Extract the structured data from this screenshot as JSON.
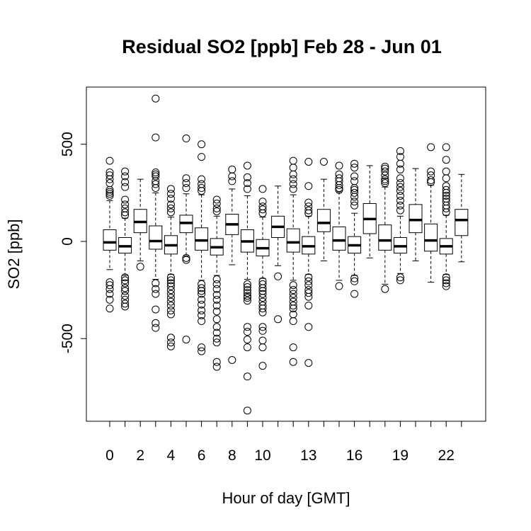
{
  "chart_data": {
    "type": "box",
    "title": "Residual SO2 [ppb] Feb 28 - Jun 01",
    "xlabel": "Hour of day [GMT]",
    "ylabel": "SO2 [ppb]",
    "ylim": [
      -900,
      800
    ],
    "y_ticks": [
      -500,
      0,
      500
    ],
    "y_tick_labels": [
      "-500",
      "0",
      "500"
    ],
    "x_tick_labels": [
      "0",
      "2",
      "4",
      "6",
      "8",
      "10",
      "13",
      "16",
      "19",
      "22"
    ],
    "x_tick_label_hours": [
      0,
      2,
      4,
      6,
      8,
      10,
      13,
      16,
      19,
      22
    ],
    "boxes": [
      {
        "hour": 0,
        "whisker_low": -145,
        "q1": -45,
        "median": -5,
        "q3": 60,
        "whisker_high": 210,
        "outliers": [
          415,
          355,
          340,
          320,
          300,
          265,
          255,
          245,
          235,
          -210,
          -225,
          -245,
          -270,
          -300,
          -345
        ]
      },
      {
        "hour": 1,
        "whisker_low": -175,
        "q1": -60,
        "median": -25,
        "q3": 20,
        "whisker_high": 120,
        "outliers": [
          360,
          335,
          305,
          280,
          215,
          190,
          170,
          150,
          135,
          -185,
          -200,
          -215,
          -240,
          -255,
          -280,
          -300,
          -320,
          -335
        ]
      },
      {
        "hour": 2,
        "whisker_low": -100,
        "q1": 45,
        "median": 100,
        "q3": 165,
        "whisker_high": 320,
        "outliers": [
          -130
        ]
      },
      {
        "hour": 3,
        "whisker_low": -195,
        "q1": -40,
        "median": 2,
        "q3": 80,
        "whisker_high": 250,
        "outliers": [
          735,
          535,
          355,
          345,
          335,
          310,
          295,
          275,
          -215,
          -245,
          -270,
          -350,
          -420,
          -445
        ]
      },
      {
        "hour": 4,
        "whisker_low": -170,
        "q1": -65,
        "median": -20,
        "q3": 30,
        "whisker_high": 125,
        "outliers": [
          270,
          245,
          220,
          190,
          170,
          150,
          -185,
          -200,
          -215,
          -230,
          -250,
          -270,
          -290,
          -310,
          -330,
          -355,
          -375,
          -495,
          -520,
          -540
        ]
      },
      {
        "hour": 5,
        "whisker_low": -75,
        "q1": 45,
        "median": 95,
        "q3": 135,
        "whisker_high": 245,
        "outliers": [
          530,
          325,
          300,
          275,
          -85,
          -95,
          -505
        ]
      },
      {
        "hour": 6,
        "whisker_low": -200,
        "q1": -45,
        "median": 5,
        "q3": 70,
        "whisker_high": 240,
        "outliers": [
          500,
          435,
          320,
          295,
          275,
          260,
          -220,
          -240,
          -255,
          -270,
          -300,
          -325,
          -355,
          -380,
          -410,
          -545,
          -565
        ]
      },
      {
        "hour": 7,
        "whisker_low": -175,
        "q1": -70,
        "median": -30,
        "q3": 15,
        "whisker_high": 130,
        "outliers": [
          215,
          195,
          170,
          155,
          -195,
          -220,
          -245,
          -275,
          -300,
          -330,
          -360,
          -400,
          -440,
          -470,
          -500,
          -520,
          -620,
          -645
        ]
      },
      {
        "hour": 8,
        "whisker_low": -120,
        "q1": 35,
        "median": 88,
        "q3": 140,
        "whisker_high": 270,
        "outliers": [
          370,
          335,
          310,
          -610
        ]
      },
      {
        "hour": 9,
        "whisker_low": -195,
        "q1": -55,
        "median": 0,
        "q3": 60,
        "whisker_high": 235,
        "outliers": [
          390,
          330,
          300,
          270,
          -220,
          -235,
          -250,
          -265,
          -280,
          -290,
          -305,
          -440,
          -465,
          -505,
          -545,
          -695,
          -870
        ]
      },
      {
        "hour": 10,
        "whisker_low": -190,
        "q1": -75,
        "median": -35,
        "q3": 10,
        "whisker_high": 125,
        "outliers": [
          270,
          205,
          180,
          165,
          145,
          -205,
          -220,
          -240,
          -255,
          -270,
          -290,
          -310,
          -330,
          -345,
          -365,
          -440,
          -460,
          -510,
          -545,
          -640
        ]
      },
      {
        "hour": 11,
        "whisker_low": -125,
        "q1": 20,
        "median": 75,
        "q3": 130,
        "whisker_high": 285,
        "outliers": [
          -180,
          -400
        ]
      },
      {
        "hour": 12,
        "whisker_low": -200,
        "q1": -55,
        "median": -5,
        "q3": 65,
        "whisker_high": 240,
        "outliers": [
          415,
          380,
          345,
          320,
          295,
          270,
          -225,
          -250,
          -270,
          -290,
          -310,
          -330,
          -345,
          -375,
          -410,
          -545,
          -620
        ]
      },
      {
        "hour": 13,
        "whisker_low": -170,
        "q1": -65,
        "median": -25,
        "q3": 25,
        "whisker_high": 130,
        "outliers": [
          410,
          285,
          200,
          180,
          160,
          145,
          -185,
          -205,
          -225,
          -250,
          -265,
          -285,
          -330,
          -440,
          -625
        ]
      },
      {
        "hour": 14,
        "whisker_low": -100,
        "q1": 50,
        "median": 95,
        "q3": 165,
        "whisker_high": 320,
        "outliers": [
          410
        ]
      },
      {
        "hour": 15,
        "whisker_low": -200,
        "q1": -45,
        "median": 5,
        "q3": 75,
        "whisker_high": 255,
        "outliers": [
          390,
          345,
          325,
          310,
          290,
          275,
          265,
          -230
        ]
      },
      {
        "hour": 16,
        "whisker_low": -175,
        "q1": -60,
        "median": -20,
        "q3": 25,
        "whisker_high": 145,
        "outliers": [
          400,
          380,
          335,
          310,
          275,
          265,
          250,
          230,
          205,
          185,
          -190,
          -205,
          -270
        ]
      },
      {
        "hour": 17,
        "whisker_low": -85,
        "q1": 40,
        "median": 115,
        "q3": 195,
        "whisker_high": 390,
        "outliers": []
      },
      {
        "hour": 18,
        "whisker_low": -220,
        "q1": -45,
        "median": 5,
        "q3": 85,
        "whisker_high": 280,
        "outliers": [
          385,
          375,
          360,
          340,
          320,
          310,
          300,
          -245
        ]
      },
      {
        "hour": 19,
        "whisker_low": -165,
        "q1": -60,
        "median": -25,
        "q3": 20,
        "whisker_high": 130,
        "outliers": [
          465,
          435,
          400,
          370,
          325,
          300,
          280,
          260,
          235,
          210,
          185,
          160,
          -185,
          -200
        ]
      },
      {
        "hour": 20,
        "whisker_low": -100,
        "q1": 45,
        "median": 110,
        "q3": 190,
        "whisker_high": 375,
        "outliers": []
      },
      {
        "hour": 21,
        "whisker_low": -210,
        "q1": -50,
        "median": 5,
        "q3": 90,
        "whisker_high": 290,
        "outliers": [
          485,
          360,
          340,
          315,
          305
        ]
      },
      {
        "hour": 22,
        "whisker_low": -170,
        "q1": -65,
        "median": -25,
        "q3": 15,
        "whisker_high": 135,
        "outliers": [
          485,
          420,
          360,
          325,
          285,
          265,
          250,
          235,
          220,
          205,
          185,
          170,
          150,
          -185,
          -200,
          -215,
          -230
        ]
      },
      {
        "hour": 23,
        "whisker_low": -105,
        "q1": 30,
        "median": 110,
        "q3": 165,
        "whisker_high": 345,
        "outliers": []
      }
    ],
    "grid": false,
    "legend": "none"
  }
}
